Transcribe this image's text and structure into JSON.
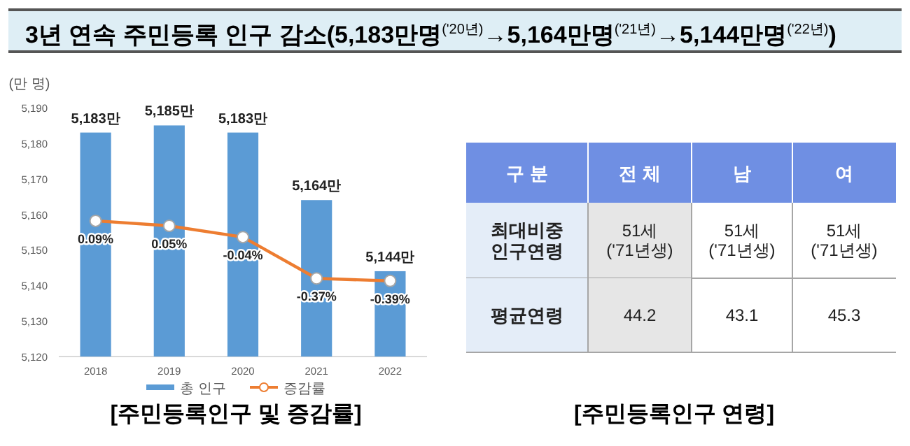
{
  "chart_data": [
    {
      "type": "bar",
      "title": "3년 연속 주민등록 인구 감소(5,183만명$^{('20년)}$→5,164만명$^{('21년)}$→5,144만명$^{('22년)}$)",
      "ylabel": "(만 명)",
      "categories": [
        "2018",
        "2019",
        "2020",
        "2021",
        "2022"
      ],
      "series": [
        {
          "name": "총 인구",
          "type": "bar",
          "color": "#5b9bd5",
          "values": [
            5183,
            5185,
            5183,
            5164,
            5144
          ],
          "value_labels": [
            "5,183만",
            "5,185만",
            "5,183만",
            "5,164만",
            "5,144만"
          ]
        },
        {
          "name": "증감률",
          "type": "line",
          "axis": "y2",
          "color": "#ed7d31",
          "marker": "circle",
          "values": [
            0.09,
            0.05,
            -0.04,
            -0.37,
            -0.39
          ],
          "value_labels": [
            "0.09%",
            "0.05%",
            "-0.04%",
            "-0.37%",
            "-0.39%"
          ]
        }
      ],
      "ylim": [
        5120,
        5190
      ],
      "yticks": [
        {
          "value": 5120,
          "label": "5,120"
        },
        {
          "value": 5130,
          "label": "5,130"
        },
        {
          "value": 5140,
          "label": "5,140"
        },
        {
          "value": 5150,
          "label": "5,150"
        },
        {
          "value": 5160,
          "label": "5,160"
        },
        {
          "value": 5170,
          "label": "5,170"
        },
        {
          "value": 5180,
          "label": "5,180"
        },
        {
          "value": 5190,
          "label": "5,190"
        }
      ],
      "grid": false,
      "legend": "bottom",
      "annotations": [
        "[주민등록인구 및 증감률]"
      ]
    },
    {
      "type": "other",
      "categories": [
        "구 분",
        "전 체",
        "남",
        "여"
      ],
      "y_categories": [
        "최대비중 인구연령",
        "평균연령"
      ],
      "cell_labels": [
        [
          "51세 ('71년생)",
          "51세 ('71년생)",
          "51세 ('71년생)"
        ],
        [
          "44.2",
          "43.1",
          "45.3"
        ]
      ],
      "annotations": [
        "[주민등록인구 연령]"
      ]
    }
  ]
}
